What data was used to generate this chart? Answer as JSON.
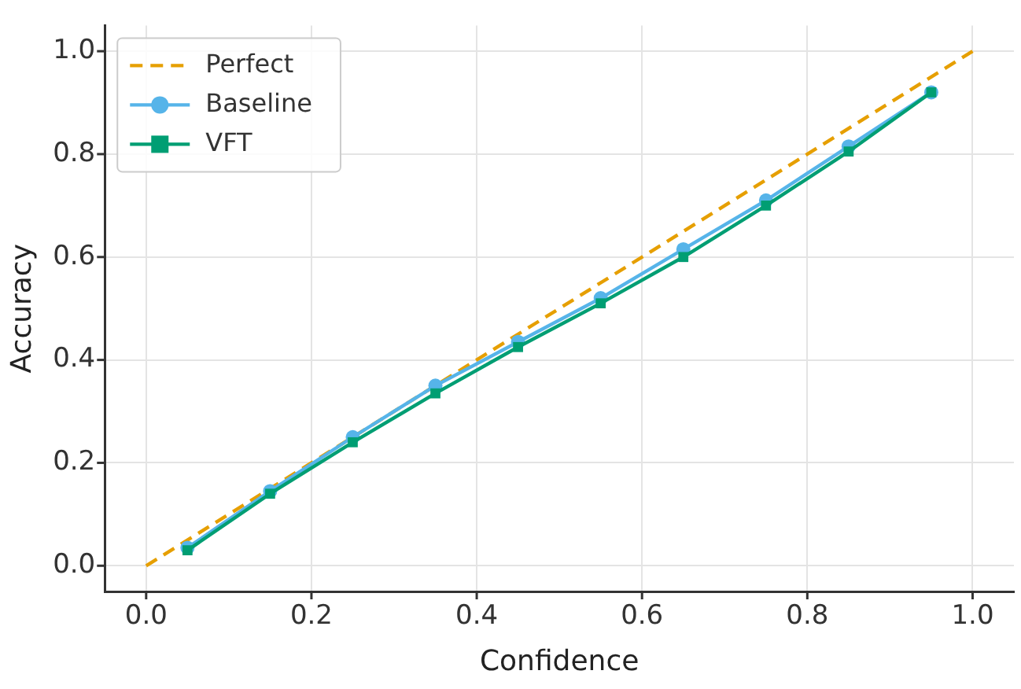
{
  "chart_data": {
    "type": "line",
    "xlabel": "Confidence",
    "ylabel": "Accuracy",
    "xlim": [
      -0.05,
      1.05
    ],
    "ylim": [
      -0.05,
      1.05
    ],
    "xticks": [
      {
        "value": 0,
        "label": "0.0"
      },
      0.2,
      0.4,
      0.6,
      0.8,
      {
        "value": 1,
        "label": "1.0"
      }
    ],
    "yticks": [
      {
        "value": 0,
        "label": "0.0"
      },
      0.2,
      0.4,
      0.6,
      0.8,
      {
        "value": 1,
        "label": "1.0"
      }
    ],
    "grid": true,
    "legend": "top left",
    "series": [
      {
        "name": "Perfect",
        "color": "#e69f00",
        "x": [
          0,
          1
        ],
        "values": [
          0,
          1
        ],
        "line_style": "dashed",
        "marker": "none"
      },
      {
        "name": "Baseline",
        "color": "#56b4e9",
        "x": [
          0.05,
          0.15,
          0.25,
          0.35,
          0.45,
          0.55,
          0.65,
          0.75,
          0.85,
          0.95
        ],
        "values": [
          0.035,
          0.145,
          0.25,
          0.35,
          0.435,
          0.52,
          0.615,
          0.71,
          0.815,
          0.92
        ],
        "line_style": "solid",
        "marker": "circle"
      },
      {
        "name": "VFT",
        "color": "#009e73",
        "x": [
          0.05,
          0.15,
          0.25,
          0.35,
          0.45,
          0.55,
          0.65,
          0.75,
          0.85,
          0.95
        ],
        "values": [
          0.03,
          0.14,
          0.24,
          0.335,
          0.425,
          0.51,
          0.6,
          0.7,
          0.805,
          0.92
        ],
        "line_style": "solid",
        "marker": "square"
      }
    ]
  }
}
